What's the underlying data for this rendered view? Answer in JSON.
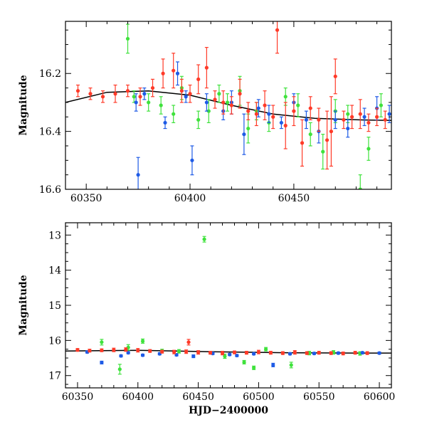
{
  "colors": {
    "red": "#ff3a28",
    "blue": "#1e5be6",
    "green": "#3fe23c",
    "trend": "#000000"
  },
  "chart_data": [
    {
      "type": "scatter",
      "title": "",
      "xlabel": "",
      "ylabel": "Magnitude",
      "xlim": [
        60340,
        60497
      ],
      "ylim": [
        16.6,
        16.02
      ],
      "y_inverted": true,
      "xticks": [
        60350,
        60400,
        60450
      ],
      "xtick_labels": [
        "60350",
        "60400",
        "60450"
      ],
      "yticks": [
        16.2,
        16.4,
        16.6
      ],
      "ytick_labels": [
        "16.2",
        "16.4",
        "16.6"
      ],
      "grid": false,
      "trend": {
        "x": [
          60340,
          60360,
          60380,
          60400,
          60420,
          60440,
          60460,
          60480,
          60497
        ],
        "y": [
          16.3,
          16.265,
          16.26,
          16.275,
          16.31,
          16.34,
          16.355,
          16.36,
          16.362
        ]
      },
      "series": [
        {
          "color": "red",
          "points": [
            [
              60346,
              16.26,
              0.02
            ],
            [
              60352,
              16.27,
              0.02
            ],
            [
              60358,
              16.28,
              0.02
            ],
            [
              60364,
              16.27,
              0.03
            ],
            [
              60370,
              16.26,
              0.02
            ],
            [
              60376,
              16.28,
              0.03
            ],
            [
              60382,
              16.25,
              0.03
            ],
            [
              60387,
              16.2,
              0.05
            ],
            [
              60392,
              16.19,
              0.06
            ],
            [
              60396,
              16.26,
              0.04
            ],
            [
              60400,
              16.27,
              0.03
            ],
            [
              60404,
              16.22,
              0.05
            ],
            [
              60408,
              16.18,
              0.07
            ],
            [
              60412,
              16.29,
              0.03
            ],
            [
              60416,
              16.3,
              0.04
            ],
            [
              60420,
              16.31,
              0.03
            ],
            [
              60424,
              16.27,
              0.05
            ],
            [
              60428,
              16.33,
              0.03
            ],
            [
              60432,
              16.34,
              0.04
            ],
            [
              60436,
              16.31,
              0.05
            ],
            [
              60440,
              16.35,
              0.04
            ],
            [
              60442,
              16.05,
              0.08
            ],
            [
              60446,
              16.38,
              0.08
            ],
            [
              60450,
              16.33,
              0.05
            ],
            [
              60454,
              16.44,
              0.08
            ],
            [
              60458,
              16.32,
              0.04
            ],
            [
              60462,
              16.36,
              0.04
            ],
            [
              60466,
              16.43,
              0.1
            ],
            [
              60468,
              16.4,
              0.12
            ],
            [
              60470,
              16.21,
              0.06
            ],
            [
              60474,
              16.36,
              0.03
            ],
            [
              60478,
              16.35,
              0.04
            ],
            [
              60482,
              16.34,
              0.05
            ],
            [
              60486,
              16.37,
              0.03
            ],
            [
              60490,
              16.35,
              0.03
            ],
            [
              60494,
              16.36,
              0.03
            ]
          ]
        },
        {
          "color": "blue",
          "points": [
            [
              60374,
              16.3,
              0.03
            ],
            [
              60375,
              16.55,
              0.06
            ],
            [
              60378,
              16.27,
              0.02
            ],
            [
              60388,
              16.37,
              0.02
            ],
            [
              60394,
              16.2,
              0.04
            ],
            [
              60398,
              16.28,
              0.02
            ],
            [
              60401,
              16.5,
              0.05
            ],
            [
              60408,
              16.3,
              0.03
            ],
            [
              60416,
              16.33,
              0.03
            ],
            [
              60420,
              16.3,
              0.04
            ],
            [
              60426,
              16.41,
              0.07
            ],
            [
              60433,
              16.32,
              0.03
            ],
            [
              60438,
              16.34,
              0.03
            ],
            [
              60444,
              16.37,
              0.02
            ],
            [
              60450,
              16.3,
              0.03
            ],
            [
              60456,
              16.36,
              0.03
            ],
            [
              60462,
              16.4,
              0.04
            ],
            [
              60470,
              16.36,
              0.03
            ],
            [
              60476,
              16.39,
              0.03
            ],
            [
              60484,
              16.35,
              0.03
            ],
            [
              60490,
              16.32,
              0.04
            ],
            [
              60496,
              16.34,
              0.03
            ]
          ]
        },
        {
          "color": "green",
          "points": [
            [
              60370,
              16.08,
              0.05
            ],
            [
              60373,
              16.28,
              0.02
            ],
            [
              60380,
              16.3,
              0.03
            ],
            [
              60386,
              16.31,
              0.03
            ],
            [
              60392,
              16.34,
              0.03
            ],
            [
              60396,
              16.25,
              0.04
            ],
            [
              60404,
              16.36,
              0.03
            ],
            [
              60409,
              16.33,
              0.04
            ],
            [
              60414,
              16.27,
              0.03
            ],
            [
              60418,
              16.3,
              0.03
            ],
            [
              60424,
              16.26,
              0.05
            ],
            [
              60428,
              16.39,
              0.05
            ],
            [
              60432,
              16.33,
              0.03
            ],
            [
              60438,
              16.37,
              0.03
            ],
            [
              60446,
              16.28,
              0.03
            ],
            [
              60452,
              16.31,
              0.04
            ],
            [
              60458,
              16.41,
              0.04
            ],
            [
              60464,
              16.47,
              0.06
            ],
            [
              60470,
              16.33,
              0.04
            ],
            [
              60476,
              16.34,
              0.03
            ],
            [
              60482,
              16.6,
              0.05
            ],
            [
              60486,
              16.46,
              0.04
            ],
            [
              60492,
              16.31,
              0.04
            ]
          ]
        }
      ]
    },
    {
      "type": "scatter",
      "title": "",
      "xlabel": "HJD−2400000",
      "ylabel": "Magnitude",
      "xlim": [
        60340,
        60610
      ],
      "ylim": [
        17.35,
        12.65
      ],
      "y_inverted": true,
      "xticks": [
        60350,
        60400,
        60450,
        60500,
        60550,
        60600
      ],
      "xtick_labels": [
        "60350",
        "60400",
        "60450",
        "60500",
        "60550",
        "60600"
      ],
      "yticks": [
        13,
        14,
        15,
        16,
        17
      ],
      "ytick_labels": [
        "13",
        "14",
        "15",
        "16",
        "17"
      ],
      "grid": false,
      "trend": {
        "x": [
          60340,
          60400,
          60460,
          60520,
          60580,
          60610
        ],
        "y": [
          16.3,
          16.28,
          16.32,
          16.35,
          16.36,
          16.36
        ]
      },
      "series": [
        {
          "color": "red",
          "points": [
            [
              60350,
              16.27,
              0.04
            ],
            [
              60360,
              16.29,
              0.04
            ],
            [
              60370,
              16.28,
              0.04
            ],
            [
              60380,
              16.27,
              0.05
            ],
            [
              60390,
              16.26,
              0.05
            ],
            [
              60400,
              16.28,
              0.05
            ],
            [
              60410,
              16.3,
              0.04
            ],
            [
              60420,
              16.32,
              0.04
            ],
            [
              60430,
              16.33,
              0.05
            ],
            [
              60440,
              16.32,
              0.05
            ],
            [
              60442,
              16.05,
              0.08
            ],
            [
              60450,
              16.34,
              0.05
            ],
            [
              60460,
              16.35,
              0.04
            ],
            [
              60470,
              16.36,
              0.05
            ],
            [
              60480,
              16.34,
              0.04
            ],
            [
              60490,
              16.35,
              0.04
            ],
            [
              60500,
              16.33,
              0.05
            ],
            [
              60510,
              16.35,
              0.04
            ],
            [
              60520,
              16.36,
              0.04
            ],
            [
              60530,
              16.34,
              0.05
            ],
            [
              60540,
              16.36,
              0.04
            ],
            [
              60550,
              16.35,
              0.04
            ],
            [
              60560,
              16.36,
              0.04
            ],
            [
              60570,
              16.37,
              0.04
            ],
            [
              60580,
              16.35,
              0.04
            ],
            [
              60590,
              16.36,
              0.04
            ]
          ]
        },
        {
          "color": "blue",
          "points": [
            [
              60358,
              16.33,
              0.03
            ],
            [
              60370,
              16.63,
              0.04
            ],
            [
              60386,
              16.44,
              0.03
            ],
            [
              60392,
              16.35,
              0.03
            ],
            [
              60404,
              16.42,
              0.03
            ],
            [
              60418,
              16.38,
              0.03
            ],
            [
              60432,
              16.41,
              0.03
            ],
            [
              60446,
              16.45,
              0.04
            ],
            [
              60462,
              16.37,
              0.03
            ],
            [
              60476,
              16.4,
              0.03
            ],
            [
              60482,
              16.43,
              0.03
            ],
            [
              60496,
              16.38,
              0.03
            ],
            [
              60512,
              16.7,
              0.05
            ],
            [
              60526,
              16.38,
              0.03
            ],
            [
              60546,
              16.37,
              0.03
            ],
            [
              60566,
              16.36,
              0.03
            ],
            [
              60586,
              16.35,
              0.03
            ],
            [
              60600,
              16.36,
              0.03
            ]
          ]
        },
        {
          "color": "green",
          "points": [
            [
              60370,
              16.05,
              0.08
            ],
            [
              60385,
              16.82,
              0.14
            ],
            [
              60392,
              16.2,
              0.08
            ],
            [
              60404,
              16.02,
              0.06
            ],
            [
              60420,
              16.3,
              0.05
            ],
            [
              60434,
              16.31,
              0.05
            ],
            [
              60455,
              13.12,
              0.08
            ],
            [
              60472,
              16.45,
              0.06
            ],
            [
              60488,
              16.62,
              0.05
            ],
            [
              60496,
              16.78,
              0.05
            ],
            [
              60506,
              16.25,
              0.05
            ],
            [
              60527,
              16.7,
              0.08
            ],
            [
              60542,
              16.36,
              0.05
            ],
            [
              60562,
              16.34,
              0.05
            ],
            [
              60584,
              16.37,
              0.05
            ]
          ]
        }
      ]
    }
  ]
}
